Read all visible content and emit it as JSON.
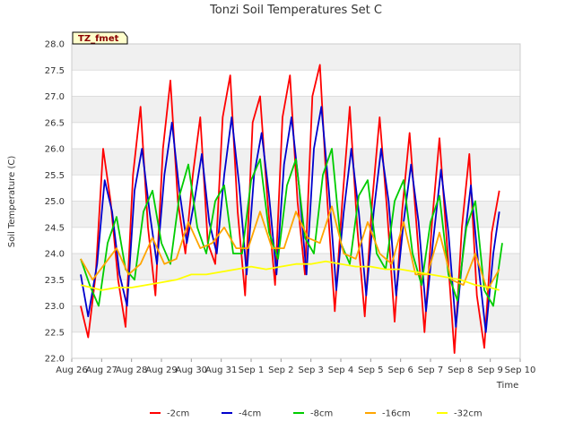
{
  "chart_data": {
    "type": "line",
    "title": "Tonzi Soil Temperatures Set C",
    "xlabel": "Time",
    "ylabel": "Soil Temperature (C)",
    "tag": "TZ_fmet",
    "ylim": [
      22.0,
      28.0
    ],
    "xlim": [
      0,
      15
    ],
    "y_ticks": [
      "22.0",
      "22.5",
      "23.0",
      "23.5",
      "24.0",
      "24.5",
      "25.0",
      "25.5",
      "26.0",
      "26.5",
      "27.0",
      "27.5",
      "28.0"
    ],
    "x_ticks": [
      "Aug 26",
      "Aug 27",
      "Aug 28",
      "Aug 29",
      "Aug 30",
      "Aug 31",
      "Sep 1",
      "Sep 2",
      "Sep 3",
      "Sep 4",
      "Sep 5",
      "Sep 6",
      "Sep 7",
      "Sep 8",
      "Sep 9",
      "Sep 10"
    ],
    "grid": true,
    "legend_position": "bottom",
    "series": [
      {
        "name": "-2cm",
        "color": "#ff0000",
        "x": [
          0.3,
          0.55,
          0.8,
          1.05,
          1.3,
          1.55,
          1.8,
          2.05,
          2.3,
          2.55,
          2.8,
          3.05,
          3.3,
          3.55,
          3.8,
          4.05,
          4.3,
          4.55,
          4.8,
          5.05,
          5.3,
          5.55,
          5.8,
          6.05,
          6.3,
          6.55,
          6.8,
          7.05,
          7.3,
          7.55,
          7.8,
          8.05,
          8.3,
          8.55,
          8.8,
          9.05,
          9.3,
          9.55,
          9.8,
          10.05,
          10.3,
          10.55,
          10.8,
          11.05,
          11.3,
          11.55,
          11.8,
          12.05,
          12.3,
          12.55,
          12.8,
          13.05,
          13.3,
          13.55,
          13.8,
          14.05,
          14.3
        ],
        "y": [
          23.0,
          22.4,
          23.6,
          26.0,
          25.0,
          23.5,
          22.6,
          25.5,
          26.8,
          24.5,
          23.2,
          26.0,
          27.3,
          25.0,
          24.0,
          25.5,
          26.6,
          24.2,
          23.8,
          26.6,
          27.4,
          24.8,
          23.2,
          26.5,
          27.0,
          25.0,
          23.4,
          26.6,
          27.4,
          25.0,
          23.6,
          27.0,
          27.6,
          25.0,
          22.9,
          25.0,
          26.8,
          24.5,
          22.8,
          25.0,
          26.6,
          24.8,
          22.7,
          24.8,
          26.3,
          24.4,
          22.5,
          24.6,
          26.2,
          24.2,
          22.1,
          24.5,
          25.9,
          23.2,
          22.2,
          24.4,
          25.2
        ]
      },
      {
        "name": "-4cm",
        "color": "#0000cc",
        "x": [
          0.3,
          0.55,
          0.85,
          1.1,
          1.35,
          1.6,
          1.85,
          2.1,
          2.35,
          2.6,
          2.85,
          3.1,
          3.35,
          3.6,
          3.85,
          4.1,
          4.35,
          4.6,
          4.85,
          5.1,
          5.35,
          5.6,
          5.85,
          6.1,
          6.35,
          6.6,
          6.85,
          7.1,
          7.35,
          7.6,
          7.85,
          8.1,
          8.35,
          8.6,
          8.85,
          9.1,
          9.35,
          9.6,
          9.85,
          10.1,
          10.35,
          10.6,
          10.85,
          11.1,
          11.35,
          11.6,
          11.85,
          12.1,
          12.35,
          12.6,
          12.85,
          13.1,
          13.35,
          13.6,
          13.85,
          14.1,
          14.3
        ],
        "y": [
          23.6,
          22.8,
          23.8,
          25.4,
          24.8,
          23.6,
          23.0,
          25.2,
          26.0,
          24.8,
          23.8,
          25.5,
          26.5,
          25.2,
          24.2,
          25.0,
          25.9,
          24.6,
          24.0,
          25.5,
          26.6,
          25.3,
          23.6,
          25.5,
          26.3,
          25.1,
          23.6,
          25.7,
          26.6,
          25.3,
          23.6,
          26.0,
          26.8,
          25.2,
          23.3,
          24.8,
          26.0,
          24.8,
          23.2,
          24.8,
          26.0,
          25.0,
          23.2,
          24.6,
          25.7,
          24.6,
          22.9,
          24.3,
          25.6,
          24.4,
          22.6,
          24.1,
          25.3,
          23.8,
          22.5,
          24.0,
          24.8
        ]
      },
      {
        "name": "-8cm",
        "color": "#00cc00",
        "x": [
          0.3,
          0.6,
          0.9,
          1.2,
          1.5,
          1.8,
          2.1,
          2.4,
          2.7,
          3.0,
          3.3,
          3.6,
          3.9,
          4.2,
          4.5,
          4.8,
          5.1,
          5.4,
          5.7,
          6.0,
          6.3,
          6.6,
          6.9,
          7.2,
          7.5,
          7.8,
          8.1,
          8.4,
          8.7,
          9.0,
          9.3,
          9.6,
          9.9,
          10.2,
          10.5,
          10.8,
          11.1,
          11.4,
          11.7,
          12.0,
          12.3,
          12.6,
          12.9,
          13.2,
          13.5,
          13.8,
          14.1,
          14.4
        ],
        "y": [
          23.9,
          23.4,
          23.0,
          24.2,
          24.7,
          23.7,
          23.5,
          24.8,
          25.2,
          24.2,
          23.8,
          25.1,
          25.7,
          24.5,
          24.0,
          25.0,
          25.3,
          24.0,
          24.0,
          25.4,
          25.8,
          24.4,
          23.9,
          25.3,
          25.8,
          24.3,
          24.0,
          25.5,
          26.0,
          24.2,
          23.8,
          25.1,
          25.4,
          24.0,
          23.7,
          25.0,
          25.4,
          24.0,
          23.4,
          24.6,
          25.1,
          23.6,
          23.1,
          24.5,
          25.0,
          23.3,
          23.0,
          24.2
        ]
      },
      {
        "name": "-16cm",
        "color": "#ffa500",
        "x": [
          0.3,
          0.7,
          1.1,
          1.5,
          1.9,
          2.3,
          2.7,
          3.1,
          3.5,
          3.9,
          4.3,
          4.7,
          5.1,
          5.5,
          5.9,
          6.3,
          6.7,
          7.1,
          7.5,
          7.9,
          8.3,
          8.7,
          9.1,
          9.5,
          9.9,
          10.3,
          10.7,
          11.1,
          11.5,
          11.9,
          12.3,
          12.7,
          13.1,
          13.5,
          13.9,
          14.3
        ],
        "y": [
          23.9,
          23.5,
          23.8,
          24.1,
          23.6,
          23.8,
          24.3,
          23.8,
          23.9,
          24.6,
          24.1,
          24.2,
          24.5,
          24.1,
          24.1,
          24.8,
          24.1,
          24.1,
          24.8,
          24.3,
          24.2,
          24.9,
          24.0,
          23.9,
          24.6,
          24.0,
          23.8,
          24.6,
          23.6,
          23.6,
          24.4,
          23.5,
          23.4,
          24.0,
          23.3,
          23.7
        ]
      },
      {
        "name": "-32cm",
        "color": "#ffff00",
        "x": [
          0.3,
          1.0,
          1.5,
          2.0,
          2.5,
          3.0,
          3.5,
          4.0,
          4.5,
          5.0,
          5.5,
          6.0,
          6.5,
          7.0,
          7.5,
          8.0,
          8.5,
          9.0,
          9.5,
          10.0,
          10.5,
          11.0,
          11.5,
          12.0,
          12.5,
          13.0,
          13.5,
          14.0,
          14.3
        ],
        "y": [
          23.4,
          23.3,
          23.35,
          23.35,
          23.4,
          23.45,
          23.5,
          23.6,
          23.6,
          23.65,
          23.7,
          23.75,
          23.7,
          23.75,
          23.8,
          23.8,
          23.85,
          23.8,
          23.75,
          23.75,
          23.7,
          23.7,
          23.65,
          23.6,
          23.55,
          23.5,
          23.4,
          23.35,
          23.3
        ]
      }
    ]
  }
}
